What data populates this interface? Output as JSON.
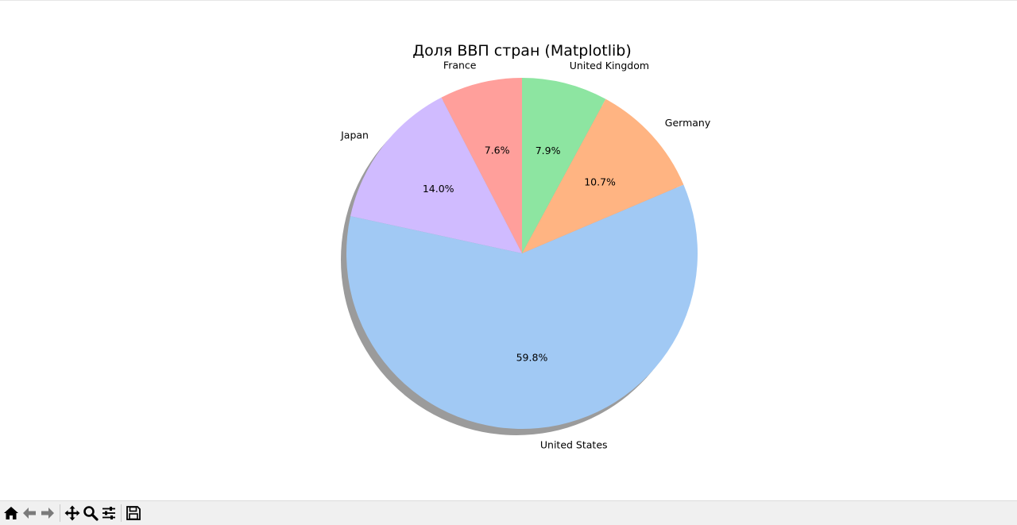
{
  "chart_data": {
    "type": "pie",
    "title": "Доля ВВП стран (Matplotlib)",
    "shadow": true,
    "start_angle_deg": 90,
    "direction": "counterclockwise",
    "slices": [
      {
        "label": "France",
        "value": 7.6,
        "pct_label": "7.6%",
        "color": "#ff9f9b"
      },
      {
        "label": "Japan",
        "value": 14.0,
        "pct_label": "14.0%",
        "color": "#d0bbff"
      },
      {
        "label": "United States",
        "value": 59.8,
        "pct_label": "59.8%",
        "color": "#a1c9f4"
      },
      {
        "label": "Germany",
        "value": 10.7,
        "pct_label": "10.7%",
        "color": "#ffb482"
      },
      {
        "label": "United Kingdom",
        "value": 7.9,
        "pct_label": "7.9%",
        "color": "#8de5a1"
      }
    ]
  },
  "toolbar": {
    "buttons": [
      {
        "icon": "home-icon"
      },
      {
        "icon": "back-icon"
      },
      {
        "icon": "forward-icon"
      },
      {
        "icon": "pan-icon"
      },
      {
        "icon": "zoom-icon"
      },
      {
        "icon": "configure-subplots-icon"
      },
      {
        "icon": "save-icon"
      }
    ]
  }
}
